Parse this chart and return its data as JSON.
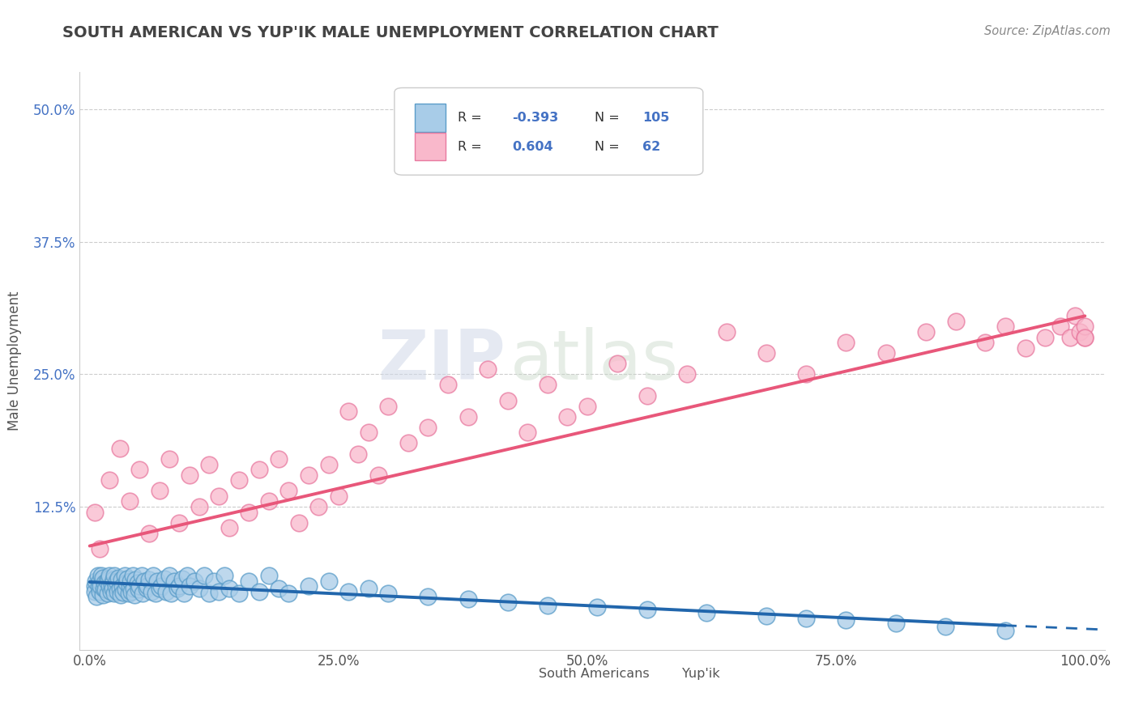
{
  "title": "SOUTH AMERICAN VS YUP'IK MALE UNEMPLOYMENT CORRELATION CHART",
  "source": "Source: ZipAtlas.com",
  "ylabel": "Male Unemployment",
  "xlim": [
    -0.01,
    1.02
  ],
  "ylim": [
    -0.01,
    0.535
  ],
  "xticks": [
    0.0,
    0.25,
    0.5,
    0.75,
    1.0
  ],
  "xticklabels": [
    "0.0%",
    "25.0%",
    "50.0%",
    "75.0%",
    "100.0%"
  ],
  "yticks": [
    0.0,
    0.125,
    0.25,
    0.375,
    0.5
  ],
  "yticklabels": [
    "",
    "12.5%",
    "25.0%",
    "37.5%",
    "50.0%"
  ],
  "legend_R1": "-0.393",
  "legend_N1": "105",
  "legend_R2": "0.604",
  "legend_N2": "62",
  "blue_color": "#a8cce8",
  "pink_color": "#f9b8cb",
  "blue_edge": "#5b9dc9",
  "pink_edge": "#e87aa0",
  "trend_blue": "#2166ac",
  "trend_pink": "#e8577a",
  "watermark_zip": "ZIP",
  "watermark_atlas": "atlas",
  "background": "#ffffff",
  "sa_x": [
    0.005,
    0.005,
    0.006,
    0.007,
    0.008,
    0.009,
    0.01,
    0.01,
    0.011,
    0.012,
    0.013,
    0.013,
    0.014,
    0.015,
    0.016,
    0.017,
    0.018,
    0.019,
    0.02,
    0.02,
    0.021,
    0.022,
    0.023,
    0.024,
    0.025,
    0.025,
    0.026,
    0.027,
    0.028,
    0.029,
    0.03,
    0.031,
    0.032,
    0.033,
    0.034,
    0.035,
    0.036,
    0.037,
    0.038,
    0.039,
    0.04,
    0.041,
    0.042,
    0.043,
    0.044,
    0.045,
    0.046,
    0.048,
    0.049,
    0.05,
    0.052,
    0.053,
    0.055,
    0.057,
    0.058,
    0.06,
    0.062,
    0.064,
    0.066,
    0.068,
    0.07,
    0.072,
    0.075,
    0.077,
    0.08,
    0.082,
    0.085,
    0.088,
    0.09,
    0.093,
    0.095,
    0.098,
    0.1,
    0.105,
    0.11,
    0.115,
    0.12,
    0.125,
    0.13,
    0.135,
    0.14,
    0.15,
    0.16,
    0.17,
    0.18,
    0.19,
    0.2,
    0.22,
    0.24,
    0.26,
    0.28,
    0.3,
    0.34,
    0.38,
    0.42,
    0.46,
    0.51,
    0.56,
    0.62,
    0.68,
    0.72,
    0.76,
    0.81,
    0.86,
    0.92
  ],
  "sa_y": [
    0.05,
    0.045,
    0.055,
    0.04,
    0.06,
    0.05,
    0.045,
    0.055,
    0.05,
    0.06,
    0.042,
    0.058,
    0.048,
    0.053,
    0.047,
    0.055,
    0.043,
    0.057,
    0.05,
    0.06,
    0.045,
    0.052,
    0.048,
    0.056,
    0.043,
    0.06,
    0.05,
    0.055,
    0.045,
    0.058,
    0.048,
    0.042,
    0.056,
    0.05,
    0.044,
    0.06,
    0.047,
    0.053,
    0.057,
    0.043,
    0.05,
    0.055,
    0.045,
    0.06,
    0.048,
    0.042,
    0.056,
    0.053,
    0.047,
    0.05,
    0.06,
    0.043,
    0.055,
    0.048,
    0.05,
    0.056,
    0.045,
    0.06,
    0.043,
    0.055,
    0.048,
    0.05,
    0.057,
    0.045,
    0.06,
    0.043,
    0.055,
    0.048,
    0.05,
    0.057,
    0.043,
    0.06,
    0.05,
    0.055,
    0.048,
    0.06,
    0.043,
    0.055,
    0.045,
    0.06,
    0.048,
    0.043,
    0.055,
    0.045,
    0.06,
    0.048,
    0.043,
    0.05,
    0.055,
    0.045,
    0.048,
    0.043,
    0.04,
    0.038,
    0.035,
    0.032,
    0.03,
    0.028,
    0.025,
    0.022,
    0.02,
    0.018,
    0.015,
    0.012,
    0.008
  ],
  "yu_x": [
    0.005,
    0.01,
    0.02,
    0.03,
    0.04,
    0.05,
    0.06,
    0.07,
    0.08,
    0.09,
    0.1,
    0.11,
    0.12,
    0.13,
    0.14,
    0.15,
    0.16,
    0.17,
    0.18,
    0.19,
    0.2,
    0.21,
    0.22,
    0.23,
    0.24,
    0.25,
    0.26,
    0.27,
    0.28,
    0.29,
    0.3,
    0.32,
    0.34,
    0.36,
    0.38,
    0.4,
    0.42,
    0.44,
    0.46,
    0.48,
    0.5,
    0.53,
    0.56,
    0.6,
    0.64,
    0.68,
    0.72,
    0.76,
    0.8,
    0.84,
    0.87,
    0.9,
    0.92,
    0.94,
    0.96,
    0.975,
    0.985,
    0.99,
    0.995,
    1.0,
    1.0,
    1.0
  ],
  "yu_y": [
    0.12,
    0.085,
    0.15,
    0.18,
    0.13,
    0.16,
    0.1,
    0.14,
    0.17,
    0.11,
    0.155,
    0.125,
    0.165,
    0.135,
    0.105,
    0.15,
    0.12,
    0.16,
    0.13,
    0.17,
    0.14,
    0.11,
    0.155,
    0.125,
    0.165,
    0.135,
    0.215,
    0.175,
    0.195,
    0.155,
    0.22,
    0.185,
    0.2,
    0.24,
    0.21,
    0.255,
    0.225,
    0.195,
    0.24,
    0.21,
    0.22,
    0.26,
    0.23,
    0.25,
    0.29,
    0.27,
    0.25,
    0.28,
    0.27,
    0.29,
    0.3,
    0.28,
    0.295,
    0.275,
    0.285,
    0.295,
    0.285,
    0.305,
    0.29,
    0.285,
    0.295,
    0.285
  ],
  "trend_blue_x0": 0.0,
  "trend_blue_y0": 0.054,
  "trend_blue_x1": 0.92,
  "trend_blue_y1": 0.013,
  "trend_blue_dash_x0": 0.92,
  "trend_blue_dash_y0": 0.013,
  "trend_blue_dash_x1": 1.02,
  "trend_blue_dash_y1": 0.009,
  "trend_pink_x0": 0.0,
  "trend_pink_y0": 0.088,
  "trend_pink_x1": 1.0,
  "trend_pink_y1": 0.305
}
